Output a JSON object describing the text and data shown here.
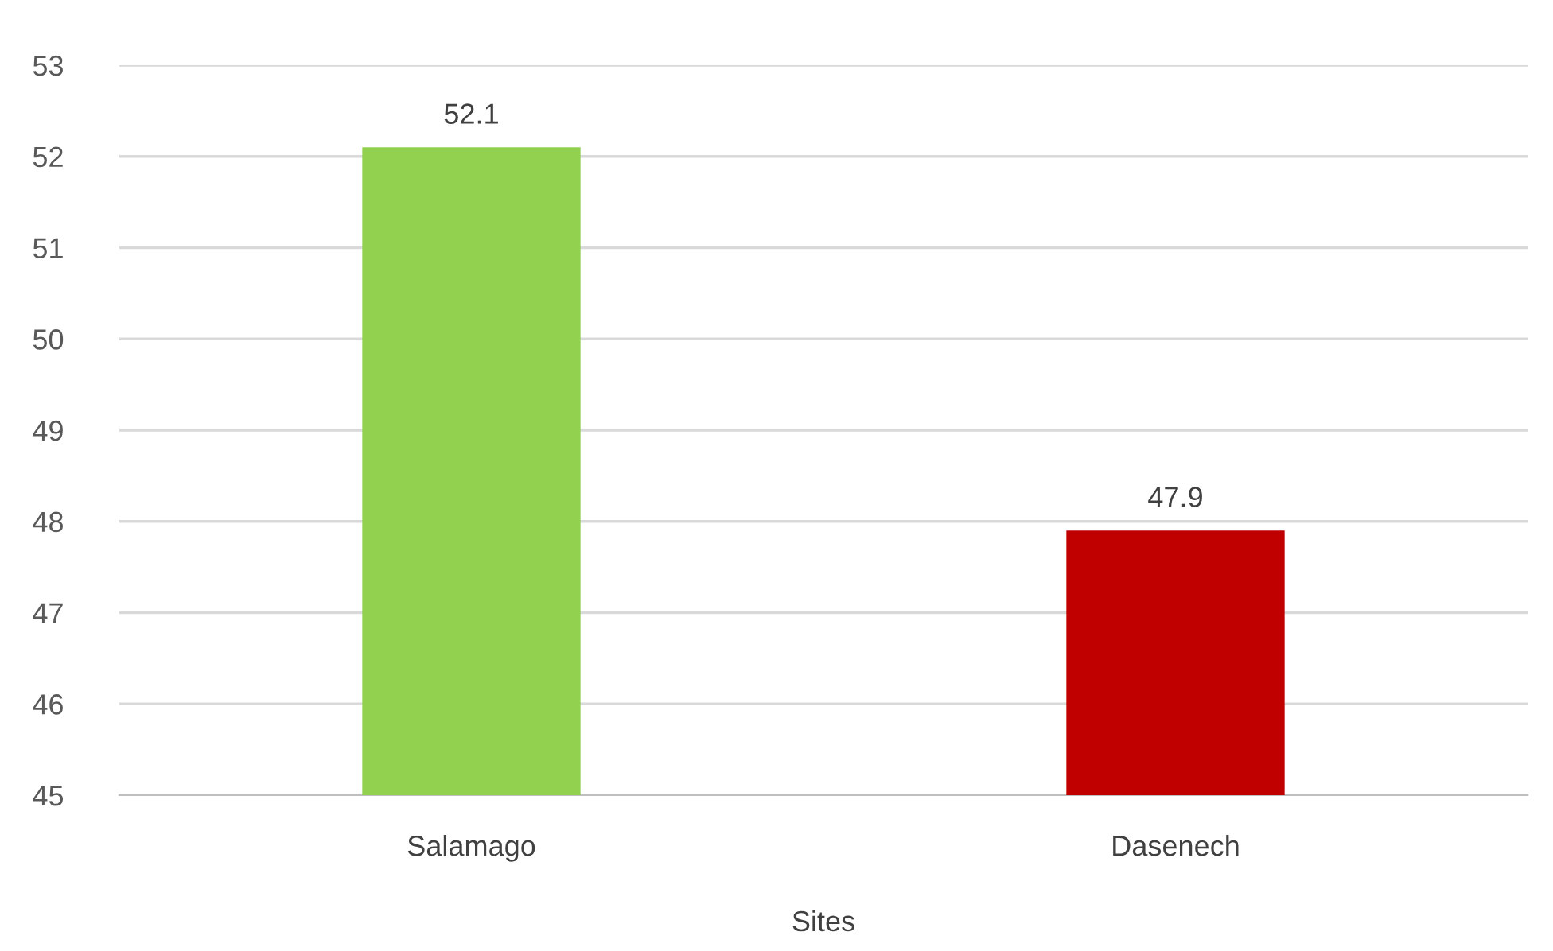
{
  "chart_data": {
    "type": "bar",
    "xlabel": "Sites",
    "categories": [
      "Salamago",
      "Dasenech"
    ],
    "series": [
      {
        "color": "#92d050",
        "values": [
          52.1,
          null
        ]
      },
      {
        "color": "#c00000",
        "values": [
          null,
          47.9
        ]
      }
    ],
    "ylim": [
      45,
      53
    ],
    "yticks": [
      45,
      46,
      47,
      48,
      49,
      50,
      51,
      52,
      53
    ],
    "grid": "y",
    "data_labels": true
  }
}
